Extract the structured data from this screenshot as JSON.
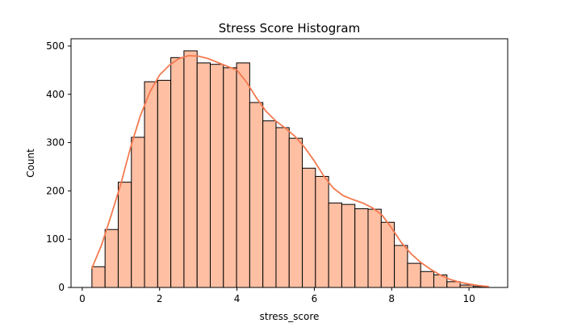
{
  "chart_data": {
    "type": "bar",
    "title": "Stress Score Histogram",
    "xlabel": "stress_score",
    "ylabel": "Count",
    "xlim": [
      -0.29,
      11.0
    ],
    "ylim": [
      0,
      515
    ],
    "xticks": [
      0,
      2,
      4,
      6,
      8,
      10
    ],
    "yticks": [
      0,
      100,
      200,
      300,
      400,
      500
    ],
    "grid": false,
    "legend": "none",
    "bin_width": 0.34,
    "bins": [
      {
        "x0": 0.25,
        "count": 43
      },
      {
        "x0": 0.59,
        "count": 120
      },
      {
        "x0": 0.93,
        "count": 218
      },
      {
        "x0": 1.27,
        "count": 311
      },
      {
        "x0": 1.61,
        "count": 426
      },
      {
        "x0": 1.95,
        "count": 429
      },
      {
        "x0": 2.29,
        "count": 476
      },
      {
        "x0": 2.63,
        "count": 490
      },
      {
        "x0": 2.97,
        "count": 465
      },
      {
        "x0": 3.31,
        "count": 462
      },
      {
        "x0": 3.65,
        "count": 455
      },
      {
        "x0": 3.99,
        "count": 465
      },
      {
        "x0": 4.33,
        "count": 383
      },
      {
        "x0": 4.67,
        "count": 345
      },
      {
        "x0": 5.01,
        "count": 331
      },
      {
        "x0": 5.35,
        "count": 309
      },
      {
        "x0": 5.69,
        "count": 247
      },
      {
        "x0": 6.03,
        "count": 230
      },
      {
        "x0": 6.37,
        "count": 175
      },
      {
        "x0": 6.71,
        "count": 172
      },
      {
        "x0": 7.05,
        "count": 163
      },
      {
        "x0": 7.39,
        "count": 162
      },
      {
        "x0": 7.73,
        "count": 135
      },
      {
        "x0": 8.07,
        "count": 87
      },
      {
        "x0": 8.41,
        "count": 50
      },
      {
        "x0": 8.75,
        "count": 33
      },
      {
        "x0": 9.09,
        "count": 26
      },
      {
        "x0": 9.43,
        "count": 12
      },
      {
        "x0": 9.77,
        "count": 5
      },
      {
        "x0": 10.11,
        "count": 2
      }
    ],
    "kde": {
      "x": [
        0.25,
        0.5,
        0.75,
        1.0,
        1.25,
        1.5,
        1.75,
        2.0,
        2.25,
        2.5,
        2.75,
        3.0,
        3.25,
        3.5,
        3.75,
        4.0,
        4.25,
        4.5,
        4.75,
        5.0,
        5.25,
        5.5,
        5.75,
        6.0,
        6.25,
        6.5,
        6.75,
        7.0,
        7.25,
        7.5,
        7.75,
        8.0,
        8.25,
        8.5,
        8.75,
        9.0,
        9.25,
        9.5,
        9.75,
        10.0,
        10.25,
        10.5
      ],
      "y": [
        40,
        88,
        150,
        215,
        290,
        355,
        405,
        440,
        460,
        474,
        480,
        479,
        474,
        466,
        458,
        450,
        425,
        393,
        365,
        345,
        330,
        313,
        290,
        262,
        230,
        205,
        190,
        182,
        175,
        165,
        150,
        123,
        93,
        70,
        52,
        38,
        26,
        17,
        11,
        7,
        4,
        2
      ]
    },
    "colors": {
      "bar_fill": "#ffbfa3",
      "bar_edge": "#000000",
      "kde_line": "#f4794f"
    }
  }
}
